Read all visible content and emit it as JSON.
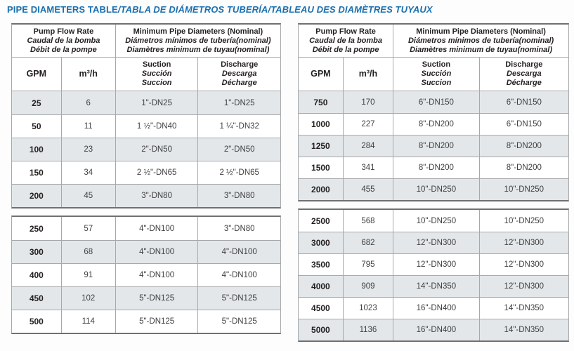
{
  "title": {
    "en": "PIPE DIAMETERS TABLE",
    "es": "TABLA DE DIÁMETROS TUBERÍA",
    "fr": "TABLEAU DES DIAMÈTRES TUYAUX",
    "separator": "/"
  },
  "colors": {
    "title_blue": "#1A6FAF",
    "row_shaded": "#E3E7E9",
    "border_dark": "#6F7072",
    "border_light": "#A6A9AB",
    "text_bold": "#231F20",
    "text_regular": "#414042"
  },
  "header": {
    "flow_rate": {
      "en": "Pump Flow Rate",
      "es": "Caudal de la bomba",
      "fr": "Débit de la pompe"
    },
    "min_diameters": {
      "en": "Minimum Pipe Diameters (Nominal)",
      "es": "Diámetros mínimos de tubería(nominal)",
      "fr": "Diamètres minimum de tuyau(nominal)"
    },
    "col_gpm": "GPM",
    "col_m3h": "m³/h",
    "col_suction": {
      "en": "Suction",
      "es": "Succión",
      "fr": "Succion"
    },
    "col_discharge": {
      "en": "Discharge",
      "es": "Descarga",
      "fr": "Décharge"
    }
  },
  "tables": [
    {
      "name": "low-flow",
      "sections": [
        {
          "rows": [
            {
              "gpm": "25",
              "m3h": "6",
              "suction": "1\"-DN25",
              "discharge": "1\"-DN25"
            },
            {
              "gpm": "50",
              "m3h": "11",
              "suction": "1 ½\"-DN40",
              "discharge": "1 ¼\"-DN32"
            },
            {
              "gpm": "100",
              "m3h": "23",
              "suction": "2\"-DN50",
              "discharge": "2\"-DN50"
            },
            {
              "gpm": "150",
              "m3h": "34",
              "suction": "2 ½\"-DN65",
              "discharge": "2 ½\"-DN65"
            },
            {
              "gpm": "200",
              "m3h": "45",
              "suction": "3\"-DN80",
              "discharge": "3\"-DN80"
            }
          ]
        },
        {
          "rows": [
            {
              "gpm": "250",
              "m3h": "57",
              "suction": "4\"-DN100",
              "discharge": "3\"-DN80"
            },
            {
              "gpm": "300",
              "m3h": "68",
              "suction": "4\"-DN100",
              "discharge": "4\"-DN100"
            },
            {
              "gpm": "400",
              "m3h": "91",
              "suction": "4\"-DN100",
              "discharge": "4\"-DN100"
            },
            {
              "gpm": "450",
              "m3h": "102",
              "suction": "5\"-DN125",
              "discharge": "5\"-DN125"
            },
            {
              "gpm": "500",
              "m3h": "114",
              "suction": "5\"-DN125",
              "discharge": "5\"-DN125"
            }
          ]
        }
      ]
    },
    {
      "name": "high-flow",
      "sections": [
        {
          "rows": [
            {
              "gpm": "750",
              "m3h": "170",
              "suction": "6\"-DN150",
              "discharge": "6\"-DN150"
            },
            {
              "gpm": "1000",
              "m3h": "227",
              "suction": "8\"-DN200",
              "discharge": "6\"-DN150"
            },
            {
              "gpm": "1250",
              "m3h": "284",
              "suction": "8\"-DN200",
              "discharge": "8\"-DN200"
            },
            {
              "gpm": "1500",
              "m3h": "341",
              "suction": "8\"-DN200",
              "discharge": "8\"-DN200"
            },
            {
              "gpm": "2000",
              "m3h": "455",
              "suction": "10\"-DN250",
              "discharge": "10\"-DN250"
            }
          ]
        },
        {
          "rows": [
            {
              "gpm": "2500",
              "m3h": "568",
              "suction": "10\"-DN250",
              "discharge": "10\"-DN250"
            },
            {
              "gpm": "3000",
              "m3h": "682",
              "suction": "12\"-DN300",
              "discharge": "12\"-DN300"
            },
            {
              "gpm": "3500",
              "m3h": "795",
              "suction": "12\"-DN300",
              "discharge": "12\"-DN300"
            },
            {
              "gpm": "4000",
              "m3h": "909",
              "suction": "14\"-DN350",
              "discharge": "12\"-DN300"
            },
            {
              "gpm": "4500",
              "m3h": "1023",
              "suction": "16\"-DN400",
              "discharge": "14\"-DN350"
            },
            {
              "gpm": "5000",
              "m3h": "1136",
              "suction": "16\"-DN400",
              "discharge": "14\"-DN350"
            }
          ]
        }
      ]
    }
  ]
}
